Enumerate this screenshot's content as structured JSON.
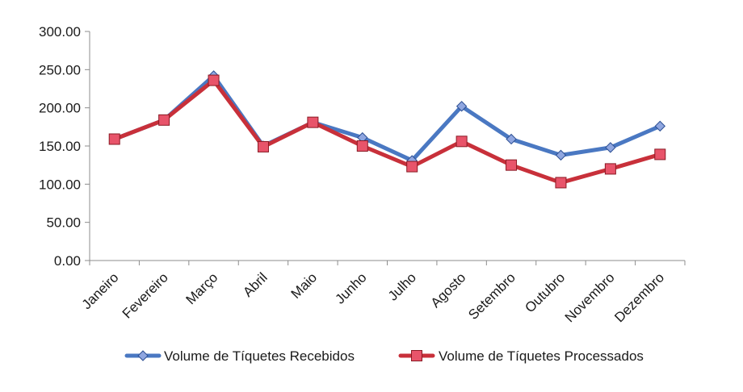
{
  "chart_data": {
    "type": "line",
    "title": "",
    "xlabel": "",
    "ylabel": "",
    "categories": [
      "Janeiro",
      "Fevereiro",
      "Março",
      "Abril",
      "Maio",
      "Junho",
      "Julho",
      "Agosto",
      "Setembro",
      "Outubro",
      "Novembro",
      "Dezembro"
    ],
    "ylim": [
      0,
      300
    ],
    "yticks": [
      0,
      50,
      100,
      150,
      200,
      250,
      300
    ],
    "ytick_labels": [
      "0.00",
      "50.00",
      "100.00",
      "150.00",
      "200.00",
      "250.00",
      "300.00"
    ],
    "grid": false,
    "legend_position": "bottom",
    "series": [
      {
        "name": "Volume de Tíquetes Recebidos",
        "color": "#4a78c2",
        "marker_fill": "#8fa6e0",
        "marker": "diamond",
        "values": [
          159,
          184,
          242,
          150,
          181,
          161,
          131,
          202,
          159,
          138,
          148,
          176
        ]
      },
      {
        "name": "Volume de Tíquetes Processados",
        "color": "#c8303a",
        "marker_fill": "#e8546a",
        "marker": "square",
        "values": [
          159,
          184,
          236,
          149,
          181,
          150,
          123,
          156,
          125,
          102,
          120,
          139
        ]
      }
    ]
  }
}
